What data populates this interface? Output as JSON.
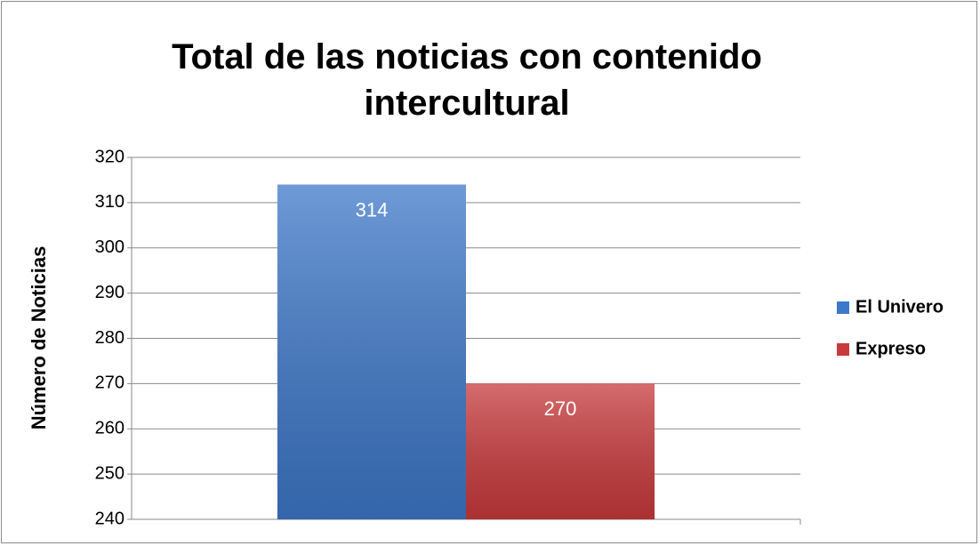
{
  "chart_data": {
    "type": "bar",
    "title": "Total de las noticias con contenido intercultural",
    "y_label": "Número de Noticias",
    "categories": [
      null
    ],
    "series": [
      {
        "name": "El Univero",
        "color": "#3e78c9",
        "values": [
          314
        ]
      },
      {
        "name": "Expreso",
        "color": "#c93a3c",
        "values": [
          270
        ]
      }
    ],
    "ylim": [
      240,
      320
    ],
    "yticks": [
      240,
      250,
      260,
      270,
      280,
      290,
      300,
      310,
      320
    ],
    "grid": true,
    "legend": "right"
  }
}
